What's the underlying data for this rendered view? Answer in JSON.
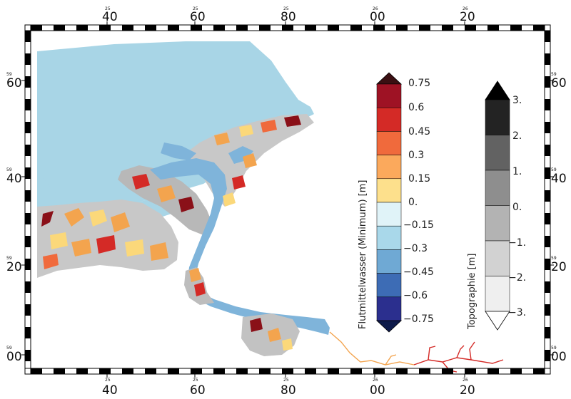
{
  "frame": {
    "top_labels": [
      {
        "small": "25",
        "big": "40"
      },
      {
        "small": "25",
        "big": "60"
      },
      {
        "small": "25",
        "big": "80"
      },
      {
        "small": "26",
        "big": "00"
      },
      {
        "small": "26",
        "big": "20"
      }
    ],
    "bottom_labels": [
      {
        "small": "25",
        "big": "40"
      },
      {
        "small": "25",
        "big": "60"
      },
      {
        "small": "25",
        "big": "80"
      },
      {
        "small": "26",
        "big": "00"
      },
      {
        "small": "26",
        "big": "20"
      }
    ],
    "left_labels": [
      {
        "small": "59",
        "big": "60"
      },
      {
        "small": "59",
        "big": "40"
      },
      {
        "small": "59",
        "big": "20"
      },
      {
        "small": "59",
        "big": "00"
      }
    ],
    "right_labels": [
      {
        "small": "59",
        "big": "60"
      },
      {
        "small": "59",
        "big": "40"
      },
      {
        "small": "59",
        "big": "20"
      },
      {
        "small": "59",
        "big": "00"
      }
    ]
  },
  "colorbar_flood": {
    "title": "Flutmittelwasser (Minimum) [m]",
    "labels": [
      "0.75",
      "0.6",
      "0.45",
      "0.3",
      "0.15",
      "0.",
      "−0.15",
      "−0.3",
      "−0.45",
      "−0.6",
      "−0.75"
    ],
    "colors_top_to_bottom": [
      "#3a0f12",
      "#9e1224",
      "#d42a26",
      "#f06a3c",
      "#fba95c",
      "#fde08c",
      "#e0f3f8",
      "#a9d8ea",
      "#6fa9d4",
      "#3d6cb5",
      "#2b2f8e",
      "#0d1a4a"
    ]
  },
  "colorbar_topo": {
    "title": "Topographie [m]",
    "labels": [
      "3.",
      "2.",
      "1.",
      "0.",
      "−1.",
      "−2.",
      "−3."
    ],
    "colors_top_to_bottom": [
      "#000000",
      "#232323",
      "#626262",
      "#8e8e8e",
      "#b3b3b3",
      "#d2d2d2",
      "#efefef",
      "#ffffff"
    ]
  },
  "map_colors": {
    "water": "#a8d5e6",
    "channel": "#7fb4da",
    "land": "#c8c8c8",
    "dark_red": "#8a1018",
    "orange": "#f3a44e",
    "yellow": "#fbd87a"
  }
}
